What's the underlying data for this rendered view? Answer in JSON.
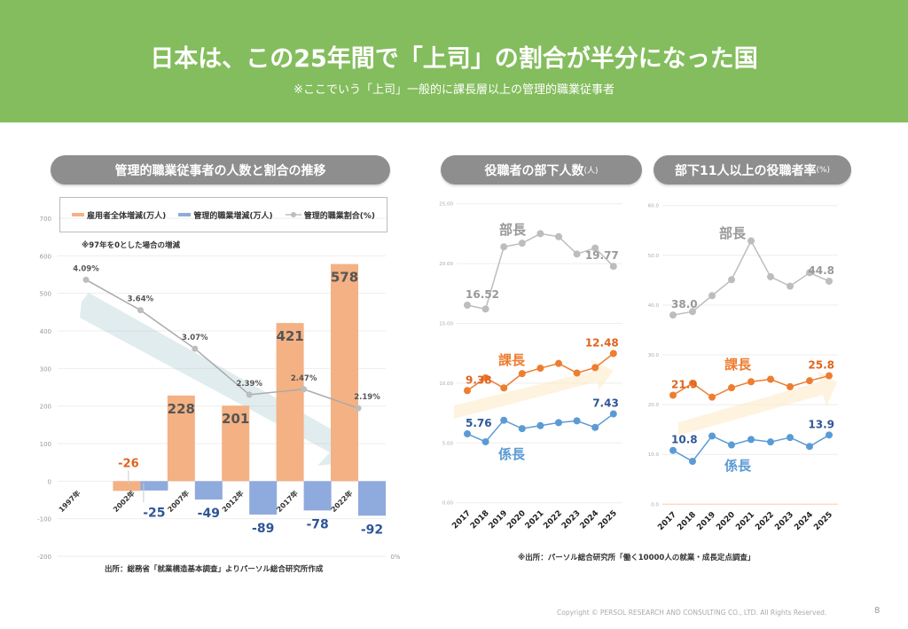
{
  "header": {
    "title": "日本は、この25年間で「上司」の割合が半分になった国",
    "subtitle": "※ここでいう「上司」一般的に課長層以上の管理的職業従事者"
  },
  "panels": {
    "left_title": "管理的職業従事者の人数と割合の推移",
    "middle_title": "役職者の部下人数",
    "middle_unit": "(人)",
    "right_title": "部下11人以上の役職者率",
    "right_unit": "(%)"
  },
  "colors": {
    "header": "#84bd5d",
    "orange": "#f4b183",
    "blue": "#8faadc",
    "gray_line": "#bdbdbd",
    "orange_line": "#ed7d31",
    "blue_line": "#5b9bd5",
    "orange_label": "#e0641f",
    "blue_label": "#2f5597"
  },
  "left_note": "※97年を0とした場合の増減",
  "left_source": "出所：総務省「就業構造基本調査」よりパーソル総合研究所作成",
  "right_source": "※出所：パーソル総合研究所「働く10000人の就業・成長定点調査」",
  "footer": {
    "copyright": "Copyright © PERSOL RESEARCH AND CONSULTING CO., LTD. All Rights Reserved.",
    "page": "8"
  },
  "chart_data": [
    {
      "type": "bar",
      "categories": [
        "1997年",
        "2002年",
        "2007年",
        "2012年",
        "2017年",
        "2022年"
      ],
      "series": [
        {
          "name": "雇用者全体増減(万人)",
          "values": [
            0,
            -26,
            228,
            201,
            421,
            578
          ],
          "labels": [
            "",
            "-26",
            "228",
            "201",
            "421",
            "578"
          ]
        },
        {
          "name": "管理的職業増減(万人)",
          "values": [
            0,
            -25,
            -49,
            -89,
            -78,
            -92
          ],
          "labels": [
            "",
            "-25",
            "-49",
            "-89",
            "-78",
            "-92"
          ]
        },
        {
          "name": "管理的職業割合(%)",
          "type": "line",
          "axis": "secondary",
          "values": [
            4.09,
            3.64,
            3.07,
            2.39,
            2.47,
            2.19
          ],
          "labels": [
            "4.09%",
            "3.64%",
            "3.07%",
            "2.39%",
            "2.47%",
            "2.19%"
          ]
        }
      ],
      "ylim": [
        -200,
        700
      ],
      "yticks": [
        "700",
        "600",
        "500",
        "400",
        "300",
        "200",
        "100",
        "0",
        "-100",
        "-200"
      ],
      "y2lim": [
        0,
        5
      ],
      "y2ticks": [
        "0%"
      ],
      "grid": true,
      "legend": "top"
    },
    {
      "type": "line",
      "x": [
        "2017",
        "2018",
        "2019",
        "2020",
        "2021",
        "2022",
        "2023",
        "2024",
        "2025"
      ],
      "series": [
        {
          "name": "部長",
          "values": [
            16.52,
            16.2,
            21.4,
            21.7,
            22.5,
            22.25,
            20.8,
            21.3,
            19.77
          ],
          "first_label": "16.52",
          "last_label": "19.77"
        },
        {
          "name": "課長",
          "values": [
            9.38,
            10.45,
            9.6,
            10.8,
            11.25,
            11.65,
            10.85,
            11.3,
            12.48
          ],
          "first_label": "9.38",
          "last_label": "12.48"
        },
        {
          "name": "係長",
          "values": [
            5.76,
            5.1,
            6.9,
            6.2,
            6.45,
            6.7,
            6.85,
            6.3,
            7.43
          ],
          "first_label": "5.76",
          "last_label": "7.43"
        }
      ],
      "ylim": [
        0,
        25
      ],
      "yticks": [
        "0.00",
        "5.00",
        "10.00",
        "15.00",
        "20.00",
        "25.00"
      ],
      "grid": true
    },
    {
      "type": "line",
      "x": [
        "2017",
        "2018",
        "2019",
        "2020",
        "2021",
        "2022",
        "2023",
        "2024",
        "2025"
      ],
      "series": [
        {
          "name": "部長",
          "values": [
            38.0,
            38.7,
            41.9,
            45.1,
            52.9,
            45.7,
            43.8,
            46.5,
            44.8
          ],
          "first_label": "38.0",
          "last_label": "44.8"
        },
        {
          "name": "課長",
          "values": [
            21.9,
            24.3,
            21.5,
            23.4,
            24.6,
            25.1,
            23.6,
            24.8,
            25.8
          ],
          "first_label": "21.9",
          "last_label": "25.8"
        },
        {
          "name": "係長",
          "values": [
            10.8,
            8.6,
            13.7,
            11.9,
            13.0,
            12.5,
            13.4,
            11.6,
            13.9
          ],
          "first_label": "10.8",
          "last_label": "13.9"
        }
      ],
      "ylim": [
        0,
        60
      ],
      "yticks": [
        "0.0",
        "10.0",
        "20.0",
        "30.0",
        "40.0",
        "50.0",
        "60.0"
      ],
      "grid": true
    }
  ]
}
